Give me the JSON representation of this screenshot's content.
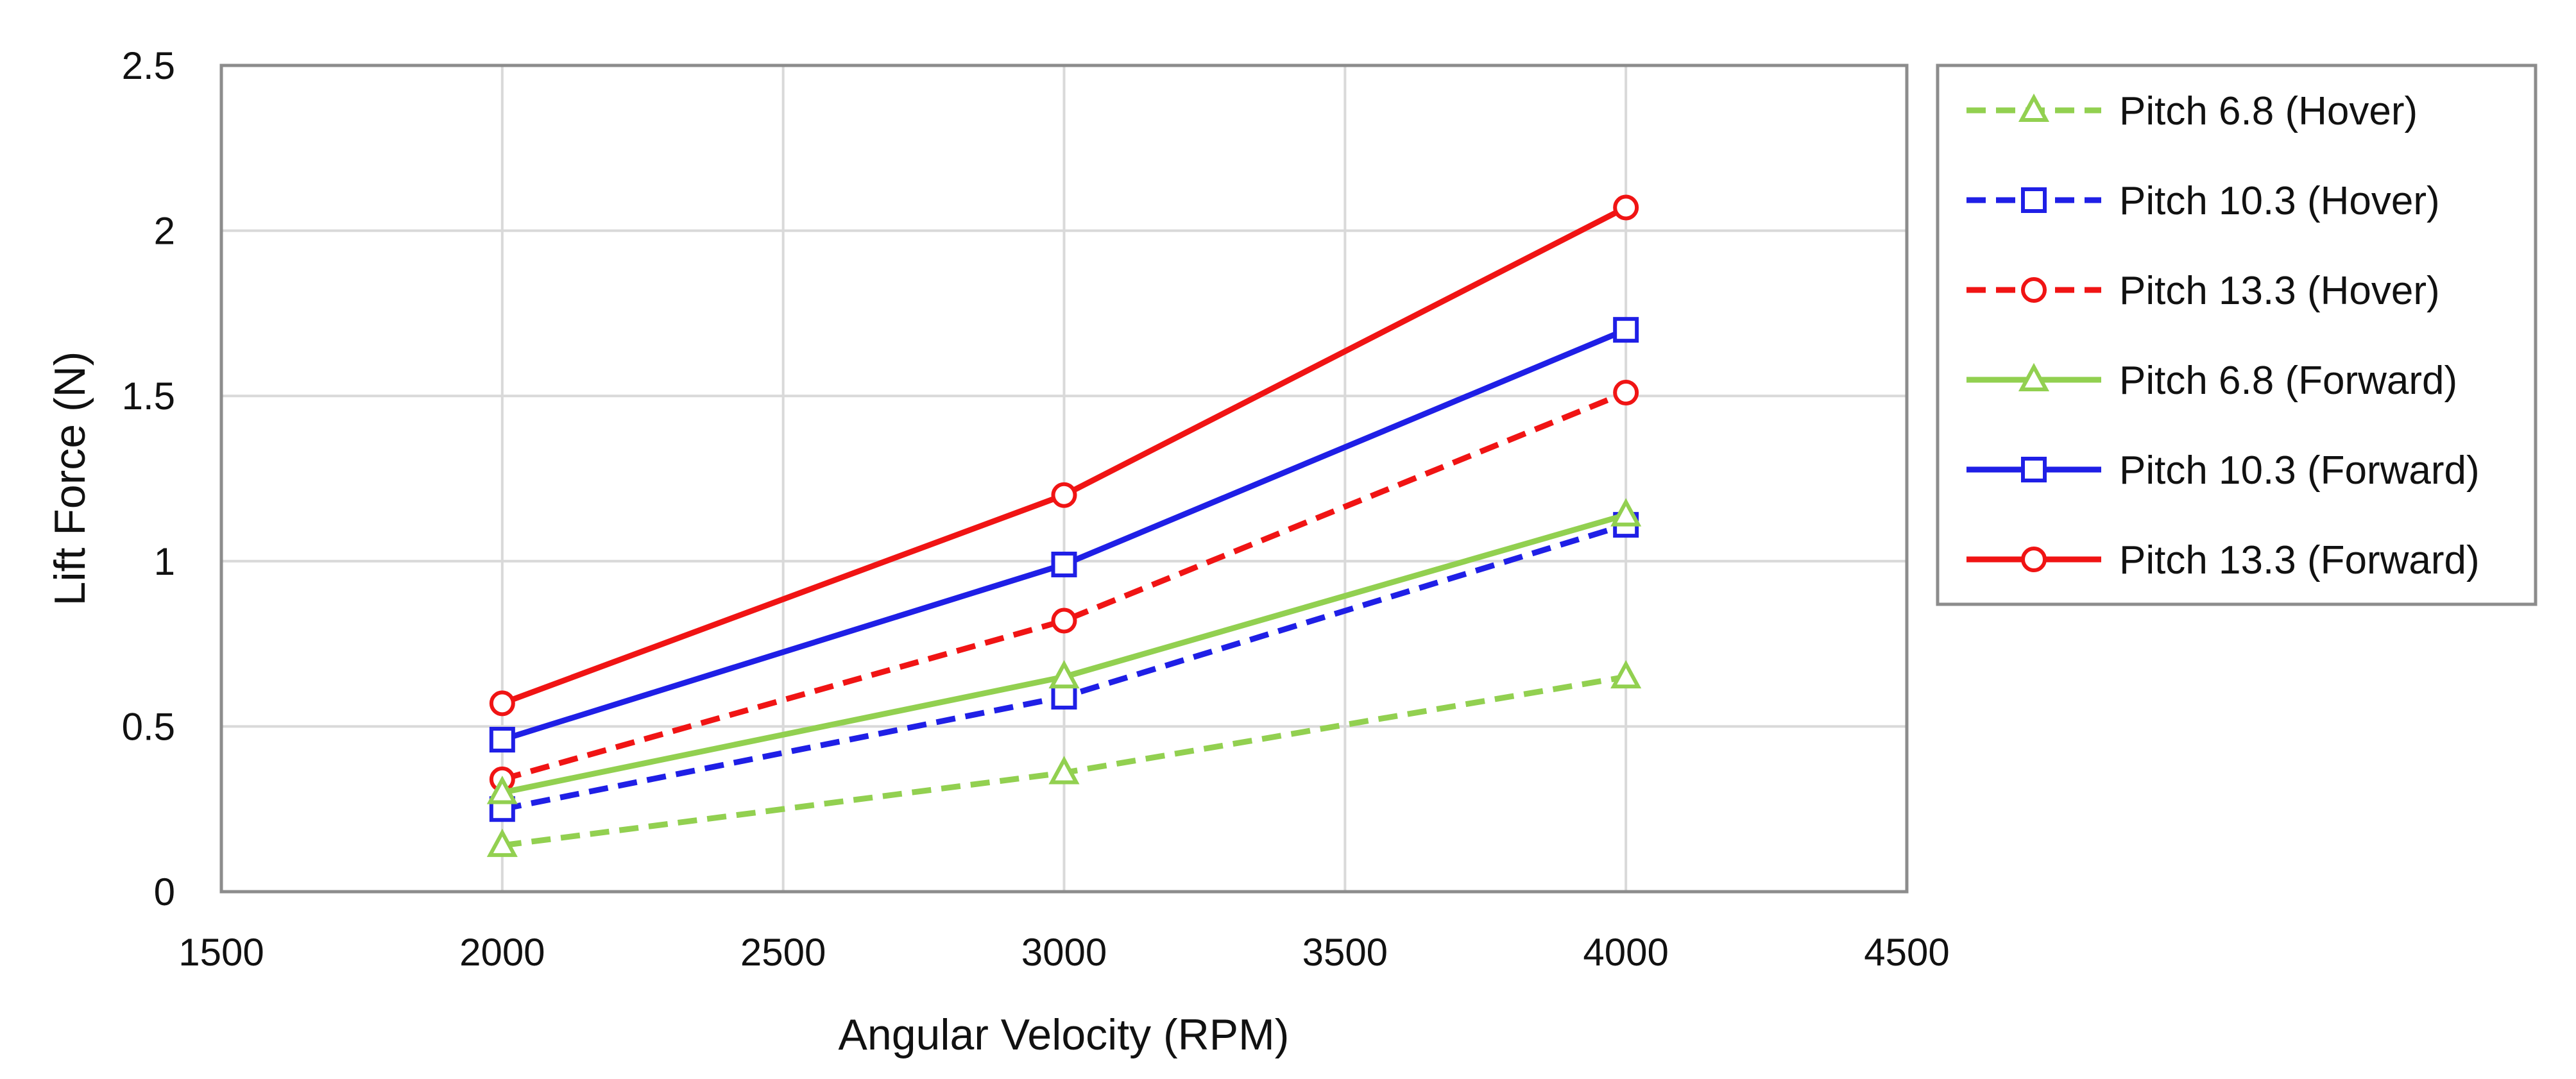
{
  "chart_data": {
    "type": "line",
    "title": "",
    "xlabel": "Angular Velocity (RPM)",
    "ylabel": "Lift Force (N)",
    "xlim": [
      1500,
      4500
    ],
    "ylim": [
      0,
      2.5
    ],
    "xticks": [
      1500,
      2000,
      2500,
      3000,
      3500,
      4000,
      4500
    ],
    "yticks": [
      0,
      0.5,
      1,
      1.5,
      2,
      2.5
    ],
    "xtick_labels": [
      "1500",
      "2000",
      "2500",
      "3000",
      "3500",
      "4000",
      "4500"
    ],
    "ytick_labels": [
      "0",
      "0.5",
      "1",
      "1.5",
      "2",
      "2.5"
    ],
    "grid": true,
    "legend_position": "right",
    "x": [
      2000,
      3000,
      4000
    ],
    "series": [
      {
        "name": "Pitch 6.8 (Hover)",
        "values": [
          0.14,
          0.36,
          0.65
        ],
        "color": "#92D050",
        "dash": "dashed",
        "marker": "triangle"
      },
      {
        "name": "Pitch 10.3 (Hover)",
        "values": [
          0.25,
          0.59,
          1.11
        ],
        "color": "#1F1FE6",
        "dash": "dashed",
        "marker": "square"
      },
      {
        "name": "Pitch 13.3 (Hover)",
        "values": [
          0.34,
          0.82,
          1.51
        ],
        "color": "#F01414",
        "dash": "dashed",
        "marker": "circle"
      },
      {
        "name": "Pitch 6.8 (Forward)",
        "values": [
          0.3,
          0.65,
          1.14
        ],
        "color": "#92D050",
        "dash": "solid",
        "marker": "triangle"
      },
      {
        "name": "Pitch 10.3 (Forward)",
        "values": [
          0.46,
          0.99,
          1.7
        ],
        "color": "#1F1FE6",
        "dash": "solid",
        "marker": "square"
      },
      {
        "name": "Pitch 13.3 (Forward)",
        "values": [
          0.57,
          1.2,
          2.07
        ],
        "color": "#F01414",
        "dash": "solid",
        "marker": "circle"
      }
    ]
  }
}
